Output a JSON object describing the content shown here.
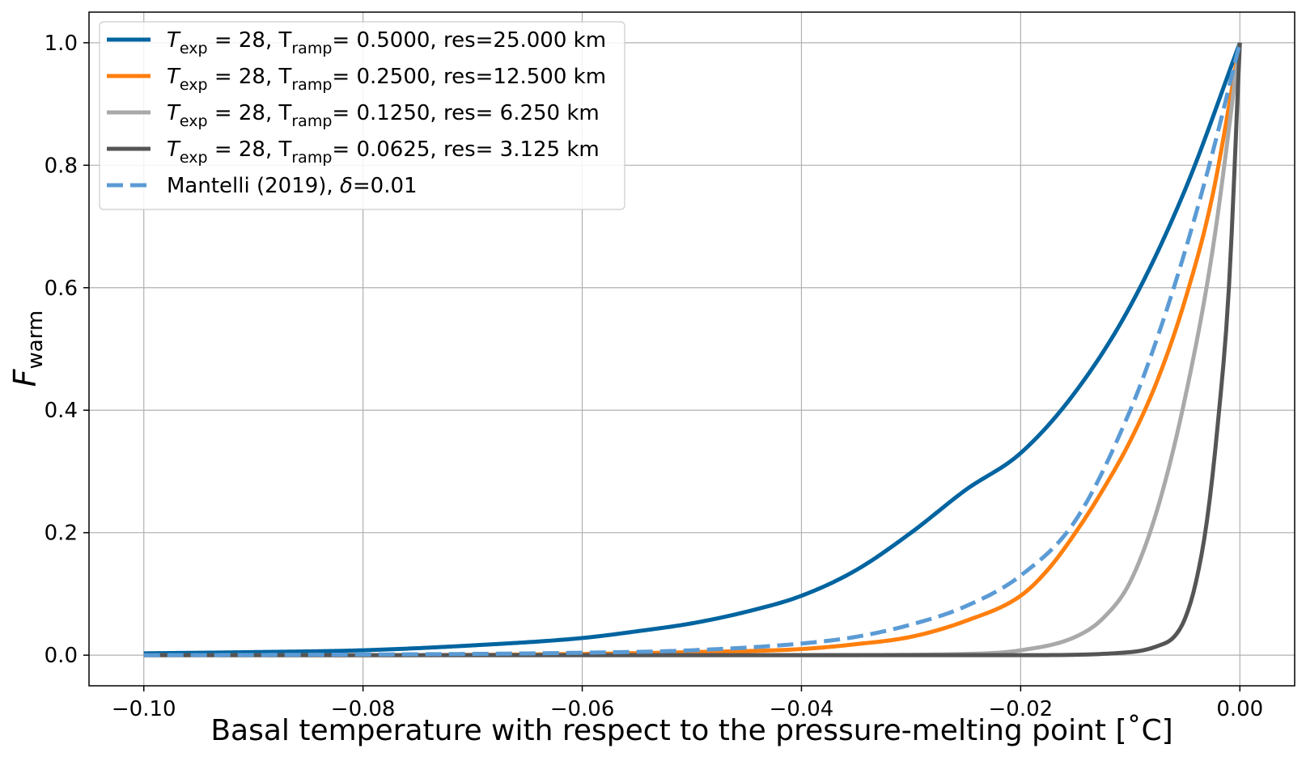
{
  "chart_data": {
    "type": "line",
    "xlabel": "Basal temperature with respect to the pressure-melting point [˚C]",
    "ylabel": {
      "main": "F",
      "sub": "warm"
    },
    "xlim": [
      -0.105,
      0.005
    ],
    "ylim": [
      -0.05,
      1.05
    ],
    "grid": true,
    "legend_position": "top-left",
    "x_ticks": [
      -0.1,
      -0.08,
      -0.06,
      -0.04,
      -0.02,
      0.0
    ],
    "x_tick_labels": [
      "−0.10",
      "−0.08",
      "−0.06",
      "−0.04",
      "−0.02",
      "0.00"
    ],
    "y_ticks": [
      0.0,
      0.2,
      0.4,
      0.6,
      0.8,
      1.0
    ],
    "y_tick_labels": [
      "0.0",
      "0.2",
      "0.4",
      "0.6",
      "0.8",
      "1.0"
    ],
    "series": [
      {
        "legend": {
          "t": "T",
          "tsub": "exp",
          "rest1": " = 28, T",
          "rsub": "ramp",
          "rest2": "= 0.5000, res=25.000 km"
        },
        "color": "#0064a0",
        "dash": false,
        "x": [
          -0.1,
          -0.09,
          -0.08,
          -0.07,
          -0.06,
          -0.055,
          -0.05,
          -0.045,
          -0.04,
          -0.035,
          -0.03,
          -0.025,
          -0.02,
          -0.015,
          -0.01,
          -0.005,
          0.0
        ],
        "y": [
          0.003,
          0.005,
          0.008,
          0.016,
          0.028,
          0.039,
          0.052,
          0.071,
          0.097,
          0.139,
          0.2,
          0.27,
          0.33,
          0.43,
          0.57,
          0.76,
          1.0
        ]
      },
      {
        "legend": {
          "t": "T",
          "tsub": "exp",
          "rest1": " = 28, T",
          "rsub": "ramp",
          "rest2": "= 0.2500, res=12.500 km"
        },
        "color": "#ff7f0e",
        "dash": false,
        "x": [
          -0.1,
          -0.08,
          -0.06,
          -0.05,
          -0.04,
          -0.035,
          -0.03,
          -0.025,
          -0.02,
          -0.0175,
          -0.015,
          -0.0125,
          -0.01,
          -0.0075,
          -0.005,
          -0.0025,
          0.0
        ],
        "y": [
          0.0,
          0.0,
          0.002,
          0.005,
          0.01,
          0.018,
          0.03,
          0.056,
          0.097,
          0.14,
          0.2,
          0.27,
          0.35,
          0.45,
          0.58,
          0.75,
          1.0
        ]
      },
      {
        "legend": {
          "t": "T",
          "tsub": "exp",
          "rest1": " = 28, T",
          "rsub": "ramp",
          "rest2": "= 0.1250, res= 6.250 km"
        },
        "color": "#a9a9a9",
        "dash": false,
        "x": [
          -0.1,
          -0.04,
          -0.025,
          -0.02,
          -0.015,
          -0.0125,
          -0.01,
          -0.0075,
          -0.005,
          -0.0025,
          0.0
        ],
        "y": [
          0.0,
          0.0,
          0.002,
          0.008,
          0.03,
          0.06,
          0.12,
          0.24,
          0.42,
          0.66,
          1.0
        ]
      },
      {
        "legend": {
          "t": "T",
          "tsub": "exp",
          "rest1": " = 28, T",
          "rsub": "ramp",
          "rest2": "= 0.0625, res= 3.125 km"
        },
        "color": "#555555",
        "dash": false,
        "x": [
          -0.1,
          -0.02,
          -0.01,
          -0.0075,
          -0.006,
          -0.005,
          -0.004,
          -0.003,
          -0.002,
          -0.001,
          0.0
        ],
        "y": [
          0.0,
          0.0,
          0.005,
          0.015,
          0.03,
          0.06,
          0.12,
          0.22,
          0.38,
          0.6,
          1.0
        ]
      },
      {
        "legend": {
          "plain": "Mantelli (2019), ",
          "italic": "δ",
          "rest": "=0.01"
        },
        "color": "#5b9bd5",
        "dash": true,
        "x": [
          -0.1,
          -0.08,
          -0.06,
          -0.05,
          -0.04,
          -0.035,
          -0.03,
          -0.025,
          -0.02,
          -0.015,
          -0.01,
          -0.0075,
          -0.005,
          -0.0025,
          0.0
        ],
        "y": [
          0.0,
          0.001,
          0.004,
          0.008,
          0.019,
          0.03,
          0.05,
          0.08,
          0.13,
          0.22,
          0.4,
          0.52,
          0.66,
          0.82,
          1.0
        ]
      }
    ]
  }
}
